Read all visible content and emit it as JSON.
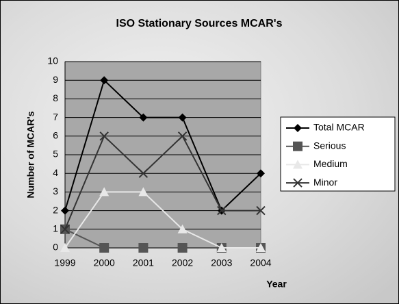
{
  "chart_data": {
    "type": "line",
    "title": "ISO Stationary Sources MCAR's",
    "x_label": "Year",
    "y_label": "Number of MCAR's",
    "categories": [
      "1999",
      "2000",
      "2001",
      "2002",
      "2003",
      "2004"
    ],
    "series": [
      {
        "name": "Total MCAR",
        "color": "#000000",
        "marker": "diamond",
        "values": [
          2,
          9,
          7,
          7,
          2,
          4
        ]
      },
      {
        "name": "Serious",
        "color": "#555555",
        "marker": "square",
        "values": [
          1,
          0,
          0,
          0,
          0,
          0
        ]
      },
      {
        "name": "Medium",
        "color": "#e8e8e8",
        "marker": "triangle",
        "values": [
          0,
          3,
          3,
          1,
          0,
          0
        ]
      },
      {
        "name": "Minor",
        "color": "#333333",
        "marker": "x",
        "values": [
          1,
          6,
          4,
          6,
          2,
          2
        ]
      }
    ],
    "ylim": [
      0,
      10
    ],
    "yticks": [
      0,
      1,
      2,
      3,
      4,
      5,
      6,
      7,
      8,
      9,
      10
    ],
    "grid": true,
    "legend": "right"
  }
}
